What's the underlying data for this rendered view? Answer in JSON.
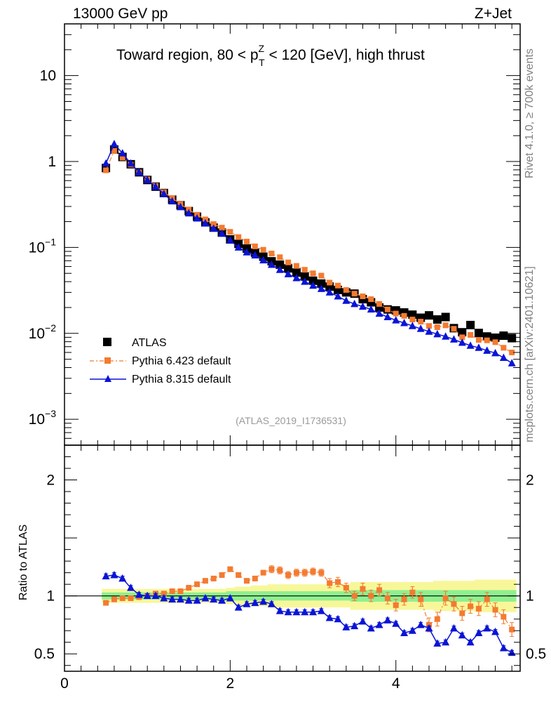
{
  "header": {
    "energy_label": "13000 GeV pp",
    "process_label": "Z+Jet"
  },
  "side_text": {
    "rivet_label": "Rivet 4.1.0, ≥ 700k events",
    "mcplots_label": "mcplots.cern.ch [arXiv:2401.10621]"
  },
  "chart_data": [
    {
      "panel": "main",
      "type": "scatter",
      "title": {
        "prefix": "Toward region, 80 < p",
        "sup": "Z",
        "sub": "T",
        "suffix": " < 120 [GeV], high thrust"
      },
      "reference": "(ATLAS_2019_I1736531)",
      "yscale": "log",
      "xlim": [
        0,
        5.5
      ],
      "ylim": [
        0.0005,
        40
      ],
      "xlabel": "",
      "ylabel": "",
      "y_ticks": [
        {
          "value": 10,
          "base": "10",
          "exp": ""
        },
        {
          "value": 1,
          "base": "1",
          "exp": ""
        },
        {
          "value": 0.1,
          "base": "10",
          "exp": "−1"
        },
        {
          "value": 0.01,
          "base": "10",
          "exp": "−2"
        },
        {
          "value": 0.001,
          "base": "10",
          "exp": "−3"
        }
      ],
      "x": [
        0.5,
        0.6,
        0.7,
        0.8,
        0.9,
        1.0,
        1.1,
        1.2,
        1.3,
        1.4,
        1.5,
        1.6,
        1.7,
        1.8,
        1.9,
        2.0,
        2.1,
        2.2,
        2.3,
        2.4,
        2.5,
        2.6,
        2.7,
        2.8,
        2.9,
        3.0,
        3.1,
        3.2,
        3.3,
        3.4,
        3.5,
        3.6,
        3.7,
        3.8,
        3.9,
        4.0,
        4.1,
        4.2,
        4.3,
        4.4,
        4.5,
        4.6,
        4.7,
        4.8,
        4.9,
        5.0,
        5.1,
        5.2,
        5.3,
        5.4
      ],
      "series": [
        {
          "name": "ATLAS",
          "color": "#000000",
          "marker": "square",
          "values": [
            0.84,
            1.38,
            1.13,
            0.93,
            0.75,
            0.61,
            0.51,
            0.43,
            0.36,
            0.31,
            0.265,
            0.228,
            0.196,
            0.17,
            0.149,
            0.124,
            0.11,
            0.097,
            0.087,
            0.078,
            0.069,
            0.063,
            0.057,
            0.051,
            0.046,
            0.041,
            0.038,
            0.035,
            0.032,
            0.03,
            0.029,
            0.025,
            0.023,
            0.02,
            0.019,
            0.0185,
            0.0175,
            0.0165,
            0.0152,
            0.0162,
            0.0145,
            0.0155,
            0.0115,
            0.0103,
            0.0125,
            0.0101,
            0.0092,
            0.0089,
            0.0094,
            0.0088
          ]
        },
        {
          "name": "Pythia 6.423 default",
          "color": "#f47a30",
          "marker": "square",
          "values": [
            0.79,
            1.33,
            1.11,
            0.92,
            0.75,
            0.62,
            0.52,
            0.44,
            0.375,
            0.32,
            0.275,
            0.24,
            0.212,
            0.187,
            0.17,
            0.152,
            0.132,
            0.117,
            0.103,
            0.094,
            0.085,
            0.077,
            0.067,
            0.061,
            0.055,
            0.05,
            0.047,
            0.039,
            0.036,
            0.032,
            0.029,
            0.027,
            0.025,
            0.022,
            0.019,
            0.017,
            0.016,
            0.0145,
            0.0137,
            0.0122,
            0.0118,
            0.0124,
            0.0113,
            0.009,
            0.0096,
            0.0084,
            0.0083,
            0.0079,
            0.0068,
            0.006
          ]
        },
        {
          "name": "Pythia 8.315 default",
          "color": "#0a14d6",
          "marker": "triangle",
          "values": [
            0.95,
            1.6,
            1.25,
            0.95,
            0.75,
            0.61,
            0.51,
            0.42,
            0.345,
            0.295,
            0.25,
            0.218,
            0.191,
            0.166,
            0.145,
            0.121,
            0.1,
            0.088,
            0.081,
            0.071,
            0.063,
            0.055,
            0.049,
            0.044,
            0.04,
            0.036,
            0.033,
            0.03,
            0.027,
            0.024,
            0.022,
            0.0205,
            0.019,
            0.017,
            0.0155,
            0.0142,
            0.0132,
            0.0122,
            0.0113,
            0.0105,
            0.0098,
            0.0092,
            0.0085,
            0.0078,
            0.0072,
            0.0068,
            0.0063,
            0.0059,
            0.0052,
            0.0045
          ]
        }
      ]
    },
    {
      "panel": "ratio",
      "type": "line",
      "xlim": [
        0,
        5.5
      ],
      "ylim": [
        0.35,
        2.3
      ],
      "xlabel": "",
      "ylabel": "Ratio to ATLAS",
      "x_tick_labels": [
        "0",
        "2",
        "4"
      ],
      "x_tick_values": [
        0,
        2,
        4
      ],
      "y_tick_labels": [
        "0.5",
        "1",
        "2"
      ],
      "y_tick_values": [
        0.5,
        1,
        2
      ],
      "x": [
        0.5,
        0.6,
        0.7,
        0.8,
        0.9,
        1.0,
        1.1,
        1.2,
        1.3,
        1.4,
        1.5,
        1.6,
        1.7,
        1.8,
        1.9,
        2.0,
        2.1,
        2.2,
        2.3,
        2.4,
        2.5,
        2.6,
        2.7,
        2.8,
        2.9,
        3.0,
        3.1,
        3.2,
        3.3,
        3.4,
        3.5,
        3.6,
        3.7,
        3.8,
        3.9,
        4.0,
        4.1,
        4.2,
        4.3,
        4.4,
        4.5,
        4.6,
        4.7,
        4.8,
        4.9,
        5.0,
        5.1,
        5.2,
        5.3,
        5.4
      ],
      "band_green_halfwidth": [
        0.03,
        0.03,
        0.03,
        0.03,
        0.03,
        0.03,
        0.03,
        0.03,
        0.03,
        0.03,
        0.03,
        0.03,
        0.03,
        0.03,
        0.03,
        0.04,
        0.04,
        0.04,
        0.04,
        0.04,
        0.04,
        0.04,
        0.04,
        0.04,
        0.04,
        0.04,
        0.04,
        0.04,
        0.04,
        0.04,
        0.05,
        0.05,
        0.05,
        0.05,
        0.05,
        0.05,
        0.05,
        0.05,
        0.05,
        0.05,
        0.05,
        0.05,
        0.05,
        0.05,
        0.05,
        0.05,
        0.05,
        0.05,
        0.05,
        0.05
      ],
      "band_yellow_halfwidth": [
        0.06,
        0.06,
        0.06,
        0.06,
        0.06,
        0.06,
        0.06,
        0.06,
        0.06,
        0.06,
        0.06,
        0.06,
        0.06,
        0.06,
        0.06,
        0.07,
        0.08,
        0.08,
        0.09,
        0.09,
        0.1,
        0.1,
        0.1,
        0.1,
        0.1,
        0.1,
        0.1,
        0.1,
        0.1,
        0.1,
        0.12,
        0.12,
        0.12,
        0.12,
        0.12,
        0.12,
        0.12,
        0.12,
        0.12,
        0.12,
        0.13,
        0.13,
        0.13,
        0.13,
        0.13,
        0.14,
        0.14,
        0.14,
        0.14,
        0.14
      ],
      "series": [
        {
          "name": "Pythia 6.423 default",
          "color": "#f47a30",
          "marker": "square",
          "values": [
            0.94,
            0.97,
            0.98,
            0.98,
            0.99,
            1.0,
            1.02,
            1.02,
            1.04,
            1.04,
            1.07,
            1.1,
            1.13,
            1.15,
            1.18,
            1.23,
            1.18,
            1.13,
            1.15,
            1.2,
            1.23,
            1.22,
            1.18,
            1.2,
            1.2,
            1.21,
            1.2,
            1.11,
            1.12,
            1.07,
            1.0,
            1.06,
            1.0,
            1.05,
            0.98,
            0.92,
            0.97,
            1.03,
            0.97,
            0.75,
            0.8,
            0.98,
            0.93,
            0.85,
            0.91,
            0.89,
            0.97,
            0.88,
            0.82,
            0.71
          ],
          "errors": [
            0.02,
            0.02,
            0.02,
            0.02,
            0.02,
            0.02,
            0.02,
            0.02,
            0.02,
            0.02,
            0.02,
            0.02,
            0.02,
            0.02,
            0.02,
            0.02,
            0.02,
            0.02,
            0.02,
            0.02,
            0.03,
            0.03,
            0.03,
            0.03,
            0.03,
            0.03,
            0.03,
            0.04,
            0.04,
            0.04,
            0.04,
            0.05,
            0.05,
            0.05,
            0.05,
            0.05,
            0.05,
            0.05,
            0.06,
            0.06,
            0.06,
            0.06,
            0.06,
            0.06,
            0.06,
            0.06,
            0.06,
            0.06,
            0.06,
            0.06
          ]
        },
        {
          "name": "Pythia 8.315 default",
          "color": "#0a14d6",
          "marker": "triangle",
          "values": [
            1.17,
            1.18,
            1.15,
            1.07,
            1.01,
            1.0,
            1.0,
            0.98,
            0.97,
            0.97,
            0.96,
            0.96,
            0.98,
            0.97,
            0.96,
            0.98,
            0.9,
            0.93,
            0.94,
            0.95,
            0.93,
            0.87,
            0.86,
            0.86,
            0.86,
            0.86,
            0.87,
            0.81,
            0.8,
            0.73,
            0.74,
            0.78,
            0.72,
            0.75,
            0.79,
            0.76,
            0.68,
            0.7,
            0.75,
            0.72,
            0.59,
            0.6,
            0.72,
            0.66,
            0.6,
            0.68,
            0.72,
            0.69,
            0.55,
            0.51
          ],
          "errors": [
            0.02,
            0.02,
            0.02,
            0.02,
            0.02,
            0.02,
            0.02,
            0.02,
            0.02,
            0.02,
            0.02,
            0.02,
            0.02,
            0.02,
            0.02,
            0.02,
            0.02,
            0.02,
            0.02,
            0.02,
            0.02,
            0.02,
            0.02,
            0.02,
            0.02,
            0.02,
            0.02,
            0.02,
            0.02,
            0.02,
            0.02,
            0.02,
            0.02,
            0.02,
            0.02,
            0.02,
            0.02,
            0.02,
            0.02,
            0.02,
            0.02,
            0.02,
            0.02,
            0.02,
            0.02,
            0.02,
            0.02,
            0.02,
            0.02,
            0.02
          ]
        }
      ]
    }
  ]
}
